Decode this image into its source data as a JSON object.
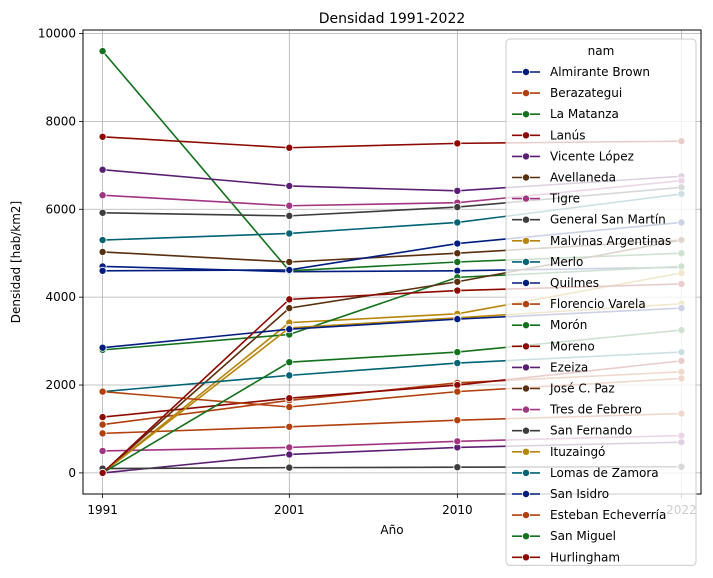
{
  "chart_data": {
    "type": "line",
    "title": "Densidad 1991-2022",
    "xlabel": "Año",
    "ylabel": "Densidad [hab/km2]",
    "x": [
      1991,
      2001,
      2010,
      2022
    ],
    "x_tick_labels": [
      "1991",
      "2001",
      "2010",
      "2022"
    ],
    "xlim": [
      1989.95,
      2023.05
    ],
    "ylim": [
      -480,
      10080
    ],
    "y_ticks": [
      0,
      2000,
      4000,
      6000,
      8000,
      10000
    ],
    "y_tick_labels": [
      "0",
      "2000",
      "4000",
      "6000",
      "8000",
      "10000"
    ],
    "grid": true,
    "legend": {
      "title": "nam",
      "placement": "upper right"
    },
    "series": [
      {
        "name": "Almirante Brown",
        "color": "#001c7f",
        "values": [
          4700,
          4580,
          4600,
          4680
        ]
      },
      {
        "name": "Berazategui",
        "color": "#b1400d",
        "values": [
          1100,
          1650,
          2050,
          2300
        ]
      },
      {
        "name": "La Matanza",
        "color": "#12711c",
        "values": [
          9600,
          4600,
          4800,
          5000
        ]
      },
      {
        "name": "Lanús",
        "color": "#8c0800",
        "values": [
          7650,
          7400,
          7500,
          7550
        ]
      },
      {
        "name": "Vicente López",
        "color": "#591e71",
        "values": [
          6900,
          6530,
          6420,
          6750
        ]
      },
      {
        "name": "Avellaneda",
        "color": "#592f0d",
        "values": [
          5030,
          4800,
          5000,
          5300
        ]
      },
      {
        "name": "Tigre",
        "color": "#a23582",
        "values": [
          6320,
          6080,
          6150,
          6650
        ]
      },
      {
        "name": "General San Martín",
        "color": "#3c3c3c",
        "values": [
          5920,
          5850,
          6050,
          6500
        ]
      },
      {
        "name": "Malvinas Argentinas",
        "color": "#b8850a",
        "values": [
          0,
          3420,
          3620,
          4550
        ]
      },
      {
        "name": "Merlo",
        "color": "#006374",
        "values": [
          5300,
          5450,
          5700,
          6350
        ]
      },
      {
        "name": "Quilmes",
        "color": "#001c7f",
        "values": [
          4600,
          4620,
          5220,
          5700
        ]
      },
      {
        "name": "Florencio Varela",
        "color": "#b1400d",
        "values": [
          900,
          1050,
          1200,
          1350
        ]
      },
      {
        "name": "Morón",
        "color": "#12711c",
        "values": [
          2800,
          3150,
          4450,
          4700
        ]
      },
      {
        "name": "Moreno",
        "color": "#8c0800",
        "values": [
          1270,
          1700,
          2000,
          2550
        ]
      },
      {
        "name": "Ezeiza",
        "color": "#591e71",
        "values": [
          0,
          420,
          580,
          700
        ]
      },
      {
        "name": "José C. Paz",
        "color": "#592f0d",
        "values": [
          0,
          3750,
          4350,
          5300
        ]
      },
      {
        "name": "Tres de Febrero",
        "color": "#a23582",
        "values": [
          500,
          580,
          720,
          850
        ]
      },
      {
        "name": "San Fernando",
        "color": "#3c3c3c",
        "values": [
          100,
          120,
          130,
          140
        ]
      },
      {
        "name": "Ituzaingó",
        "color": "#b8850a",
        "values": [
          0,
          3300,
          3530,
          3850
        ]
      },
      {
        "name": "Lomas de Zamora",
        "color": "#006374",
        "values": [
          1850,
          2220,
          2500,
          2750
        ]
      },
      {
        "name": "San Isidro",
        "color": "#001c7f",
        "values": [
          2850,
          3270,
          3500,
          3750
        ]
      },
      {
        "name": "Esteban Echeverría",
        "color": "#b1400d",
        "values": [
          1850,
          1500,
          1850,
          2150
        ]
      },
      {
        "name": "San Miguel",
        "color": "#12711c",
        "values": [
          0,
          2520,
          2750,
          3250
        ]
      },
      {
        "name": "Hurlingham",
        "color": "#8c0800",
        "values": [
          0,
          3950,
          4150,
          4300
        ]
      }
    ]
  }
}
